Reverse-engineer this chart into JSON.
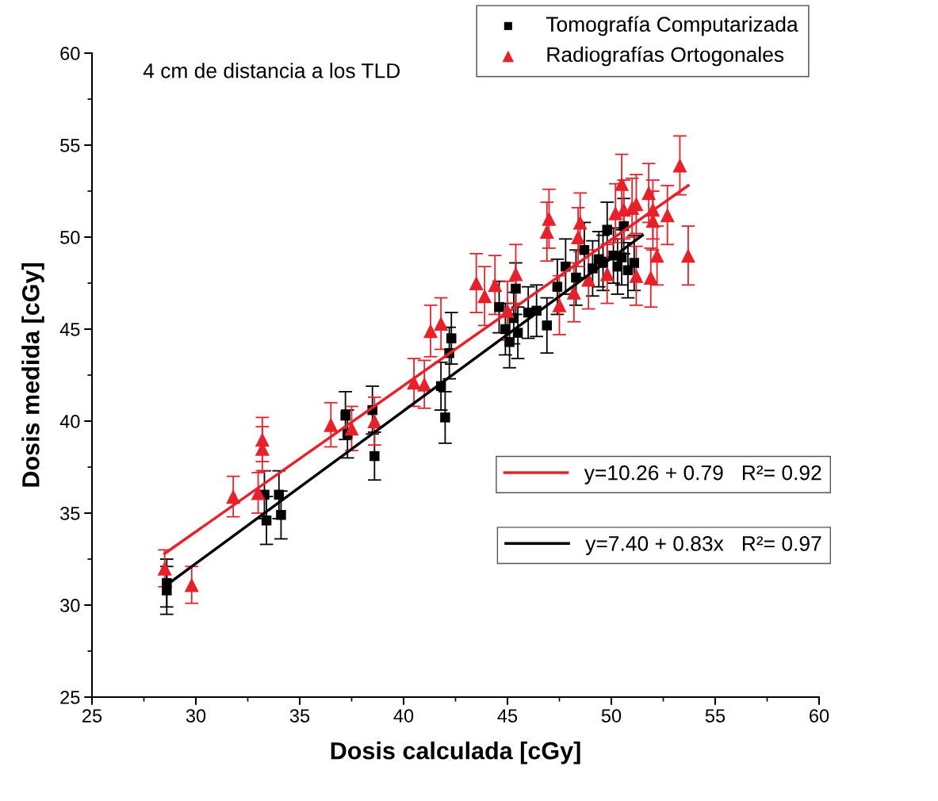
{
  "chart_data": {
    "type": "scatter",
    "xlabel": "Dosis calculada [cGy]",
    "ylabel": "Dosis medida [cGy]",
    "annotations": [
      "4 cm de distancia a los TLD"
    ],
    "xlim": [
      25,
      60
    ],
    "ylim": [
      25,
      60
    ],
    "xticks": [
      25,
      30,
      35,
      40,
      45,
      50,
      55,
      60
    ],
    "yticks": [
      25,
      30,
      35,
      40,
      45,
      50,
      55,
      60
    ],
    "grid": false,
    "legend": "top right",
    "series": [
      {
        "name": "Tomografía Computarizada",
        "color": "#000000",
        "marker": "square",
        "x": [
          28.6,
          28.6,
          33.4,
          33.3,
          34.0,
          34.1,
          37.2,
          37.3,
          38.5,
          38.6,
          41.8,
          42.0,
          42.2,
          42.3,
          44.6,
          44.9,
          45.1,
          45.3,
          45.4,
          45.5,
          46.0,
          46.4,
          46.9,
          47.4,
          47.8,
          48.3,
          48.7,
          49.1,
          49.4,
          49.6,
          49.8,
          50.1,
          50.3,
          50.5,
          50.6,
          50.8,
          51.1
        ],
        "values": [
          31.2,
          30.8,
          34.6,
          36.0,
          36.0,
          34.9,
          40.3,
          39.3,
          40.6,
          38.1,
          41.9,
          40.2,
          43.7,
          44.5,
          46.2,
          45.0,
          44.3,
          45.6,
          47.2,
          44.8,
          45.9,
          46.0,
          45.2,
          47.3,
          48.4,
          47.8,
          49.3,
          48.3,
          48.8,
          48.6,
          50.4,
          49.0,
          48.4,
          48.9,
          50.6,
          48.2,
          48.6
        ],
        "errors": [
          1.3,
          1.3,
          1.3,
          1.3,
          1.3,
          1.3,
          1.3,
          1.3,
          1.3,
          1.3,
          1.3,
          1.4,
          1.4,
          1.4,
          1.4,
          1.4,
          1.4,
          1.4,
          1.4,
          1.4,
          1.4,
          1.4,
          1.5,
          1.5,
          1.5,
          1.5,
          1.5,
          1.5,
          1.5,
          1.5,
          1.5,
          1.5,
          1.5,
          1.5,
          1.5,
          1.5,
          1.5
        ]
      },
      {
        "name": "Radiografías Ortogonales",
        "color": "#e8202a",
        "marker": "triangle",
        "x": [
          28.5,
          29.8,
          31.8,
          33.0,
          33.2,
          33.2,
          36.5,
          37.5,
          38.6,
          40.5,
          41.0,
          41.3,
          41.8,
          43.5,
          43.9,
          44.4,
          45.0,
          45.4,
          46.9,
          47.0,
          47.5,
          48.2,
          48.4,
          48.5,
          48.9,
          49.8,
          50.2,
          50.5,
          50.6,
          51.0,
          51.2,
          51.8,
          51.9,
          52.0,
          52.2,
          52.7,
          53.3,
          53.7,
          51.2,
          52.0
        ],
        "values": [
          32.0,
          31.1,
          35.9,
          36.1,
          38.5,
          39.0,
          39.8,
          39.6,
          40.0,
          42.1,
          42.0,
          44.9,
          45.3,
          47.5,
          46.8,
          47.4,
          46.0,
          48.0,
          50.3,
          51.0,
          46.3,
          47.0,
          50.0,
          50.8,
          47.7,
          48.0,
          51.3,
          52.9,
          51.5,
          51.6,
          47.9,
          52.4,
          47.8,
          50.9,
          49.0,
          51.2,
          53.9,
          49.0,
          51.8,
          51.5
        ],
        "errors": [
          1.0,
          1.0,
          1.1,
          1.1,
          1.2,
          1.2,
          1.2,
          1.2,
          1.3,
          1.3,
          1.3,
          1.4,
          1.4,
          1.6,
          1.6,
          1.6,
          1.6,
          1.6,
          1.6,
          1.6,
          1.6,
          1.6,
          1.6,
          1.6,
          1.6,
          1.6,
          1.6,
          1.6,
          1.6,
          1.6,
          1.6,
          1.6,
          1.6,
          1.6,
          1.6,
          1.6,
          1.6,
          1.6,
          1.6,
          1.6
        ]
      },
      {
        "name": "y=10.26 + 0.79   R²= 0.92",
        "type": "line",
        "color": "#e8202a",
        "x": [
          28.5,
          53.7
        ],
        "values": [
          32.8,
          52.8
        ]
      },
      {
        "name": "y=7.40 + 0.83x   R²= 0.97",
        "type": "line",
        "color": "#000000",
        "x": [
          28.6,
          51.5
        ],
        "values": [
          31.1,
          50.1
        ]
      }
    ]
  }
}
